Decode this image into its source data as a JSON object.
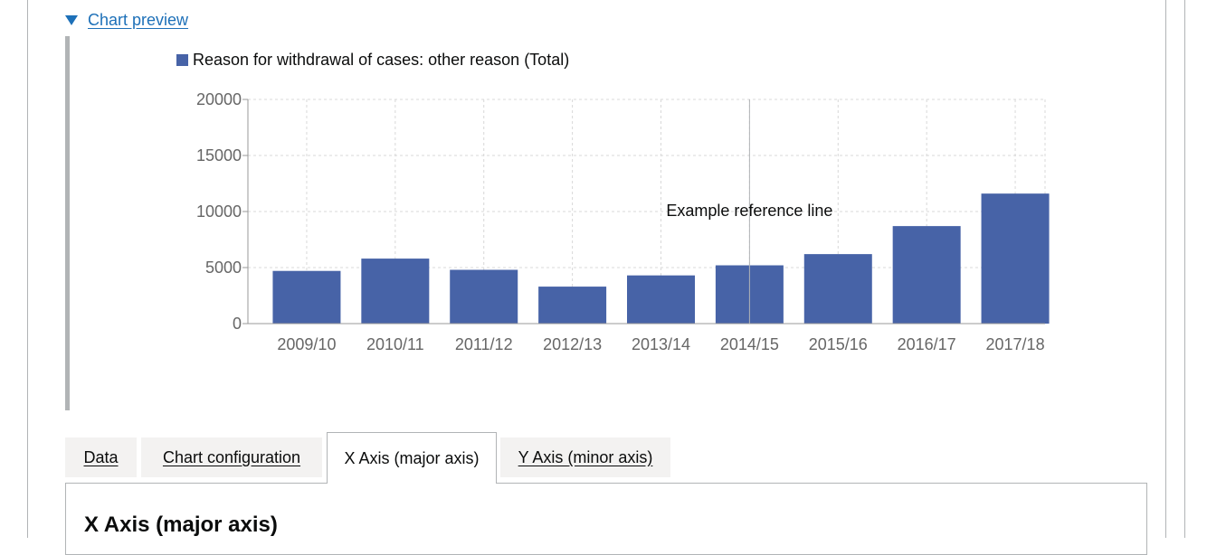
{
  "details": {
    "summary_label": "Chart preview"
  },
  "colors": {
    "bar": "#4763a7",
    "link": "#1d70b8",
    "grid": "#d8d8d8",
    "axis": "#9a9a9a"
  },
  "chart_data": {
    "type": "bar",
    "categories": [
      "2009/10",
      "2010/11",
      "2011/12",
      "2012/13",
      "2013/14",
      "2014/15",
      "2015/16",
      "2016/17",
      "2017/18"
    ],
    "series": [
      {
        "name": "Reason for withdrawal of cases: other reason (Total)",
        "values": [
          4700,
          5800,
          4800,
          3300,
          4300,
          5200,
          6200,
          8700,
          11600
        ]
      }
    ],
    "y_ticks": [
      0,
      5000,
      10000,
      15000,
      20000
    ],
    "ylim": [
      0,
      20000
    ],
    "grid": true,
    "legend": "top-left",
    "reference_line": {
      "category": "2014/15",
      "label": "Example reference line"
    }
  },
  "tabs": [
    {
      "label": "Data",
      "selected": false
    },
    {
      "label": "Chart configuration",
      "selected": false
    },
    {
      "label": "X Axis (major axis)",
      "selected": true
    },
    {
      "label": "Y Axis (minor axis)",
      "selected": false
    }
  ],
  "panel": {
    "heading": "X Axis (major axis)"
  }
}
